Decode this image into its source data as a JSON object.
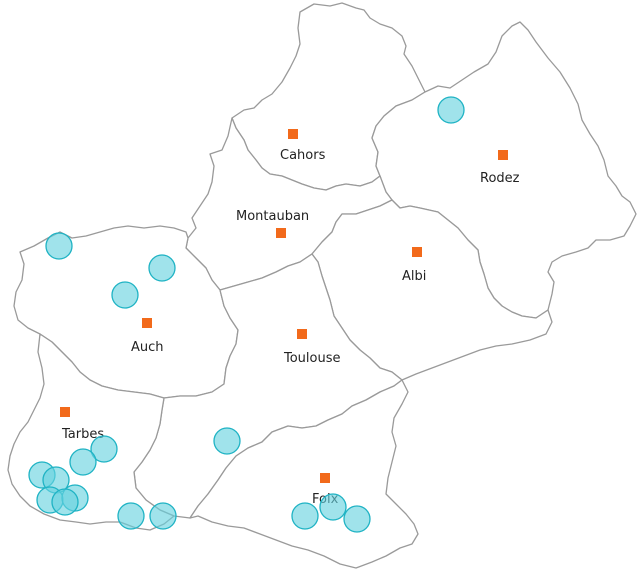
{
  "map": {
    "colors": {
      "background": "#ffffff",
      "department_border": "#9a9a9a",
      "prefecture_marker": "#f26a1b",
      "observation_fill": "#66d2de",
      "observation_stroke": "#1fb3c4"
    },
    "departments": [
      {
        "id": "lot",
        "prefecture": "Cahors"
      },
      {
        "id": "aveyron",
        "prefecture": "Rodez"
      },
      {
        "id": "tarn-et-garonne",
        "prefecture": "Montauban"
      },
      {
        "id": "tarn",
        "prefecture": "Albi"
      },
      {
        "id": "gers",
        "prefecture": "Auch"
      },
      {
        "id": "haute-garonne",
        "prefecture": "Toulouse"
      },
      {
        "id": "hautes-pyrenees",
        "prefecture": "Tarbes"
      },
      {
        "id": "ariege",
        "prefecture": "Foix"
      }
    ],
    "observation_count": 20
  }
}
